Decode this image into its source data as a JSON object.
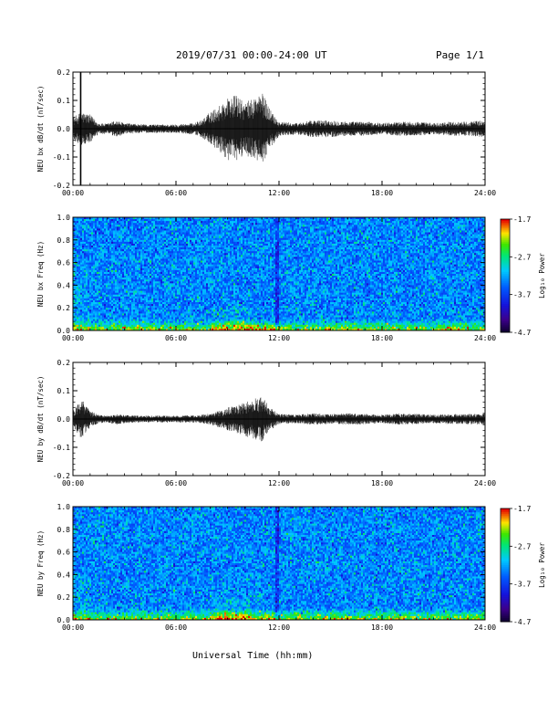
{
  "header": {
    "date_range": "2019/07/31  00:00-24:00 UT",
    "page": "Page 1/1"
  },
  "xaxis": {
    "label": "Universal Time (hh:mm)",
    "ticks": [
      "00:00",
      "06:00",
      "12:00",
      "18:00",
      "24:00"
    ]
  },
  "colorbar": {
    "label": "Log₁₀ Power",
    "ticks": [
      "-1.7",
      "-2.7",
      "-3.7",
      "-4.7"
    ]
  },
  "chart_data": [
    {
      "type": "line",
      "panel": "bx-waveform",
      "ylabel": "NEU bx dB/dt (nT/sec)",
      "xlim": [
        0,
        24
      ],
      "ylim": [
        -0.2,
        0.2
      ],
      "yticks": [
        "0.2",
        "0.1",
        "0.0",
        "-0.1",
        "-0.2"
      ],
      "envelope": {
        "x_hours": [
          0,
          0.5,
          1,
          1.5,
          2,
          2.5,
          3,
          4,
          5,
          6,
          7,
          7.5,
          8,
          8.5,
          9,
          9.5,
          10,
          10.5,
          11,
          11.5,
          12,
          13,
          14,
          15,
          16,
          17,
          18,
          19,
          20,
          21,
          22,
          23,
          24
        ],
        "amplitude": [
          0.04,
          0.06,
          0.05,
          0.02,
          0.018,
          0.03,
          0.02,
          0.015,
          0.015,
          0.015,
          0.02,
          0.03,
          0.06,
          0.08,
          0.11,
          0.12,
          0.09,
          0.11,
          0.13,
          0.07,
          0.025,
          0.02,
          0.03,
          0.03,
          0.025,
          0.025,
          0.02,
          0.025,
          0.025,
          0.02,
          0.025,
          0.025,
          0.03
        ]
      },
      "spikes": [
        {
          "x": 0.45,
          "min": -0.2,
          "max": 0.2
        }
      ]
    },
    {
      "type": "heatmap",
      "panel": "bx-spectrogram",
      "ylabel": "NEU bx Freq (Hz)",
      "xlim": [
        0,
        24
      ],
      "ylim": [
        0.0,
        1.0
      ],
      "yticks": [
        "1.0",
        "0.8",
        "0.6",
        "0.4",
        "0.2",
        "0.0"
      ],
      "zlim": [
        -4.7,
        -1.7
      ]
    },
    {
      "type": "line",
      "panel": "by-waveform",
      "ylabel": "NEU by dB/dt (nT/sec)",
      "xlim": [
        0,
        24
      ],
      "ylim": [
        -0.2,
        0.2
      ],
      "yticks": [
        "0.2",
        "0.1",
        "0.0",
        "-0.1",
        "-0.2"
      ],
      "envelope": {
        "x_hours": [
          0,
          0.5,
          1,
          1.5,
          2,
          2.5,
          3,
          4,
          5,
          6,
          7,
          7.5,
          8,
          8.5,
          9,
          9.5,
          10,
          10.5,
          11,
          11.5,
          12,
          13,
          14,
          15,
          16,
          17,
          18,
          19,
          20,
          21,
          22,
          23,
          24
        ],
        "amplitude": [
          0.03,
          0.07,
          0.03,
          0.015,
          0.012,
          0.02,
          0.015,
          0.012,
          0.012,
          0.012,
          0.013,
          0.015,
          0.02,
          0.03,
          0.04,
          0.05,
          0.06,
          0.07,
          0.08,
          0.04,
          0.018,
          0.015,
          0.02,
          0.018,
          0.02,
          0.018,
          0.015,
          0.02,
          0.018,
          0.015,
          0.018,
          0.018,
          0.02
        ]
      },
      "spikes": []
    },
    {
      "type": "heatmap",
      "panel": "by-spectrogram",
      "ylabel": "NEU by Freq (Hz)",
      "xlim": [
        0,
        24
      ],
      "ylim": [
        0.0,
        1.0
      ],
      "yticks": [
        "1.0",
        "0.8",
        "0.6",
        "0.4",
        "0.2",
        "0.0"
      ],
      "zlim": [
        -4.7,
        -1.7
      ]
    }
  ]
}
